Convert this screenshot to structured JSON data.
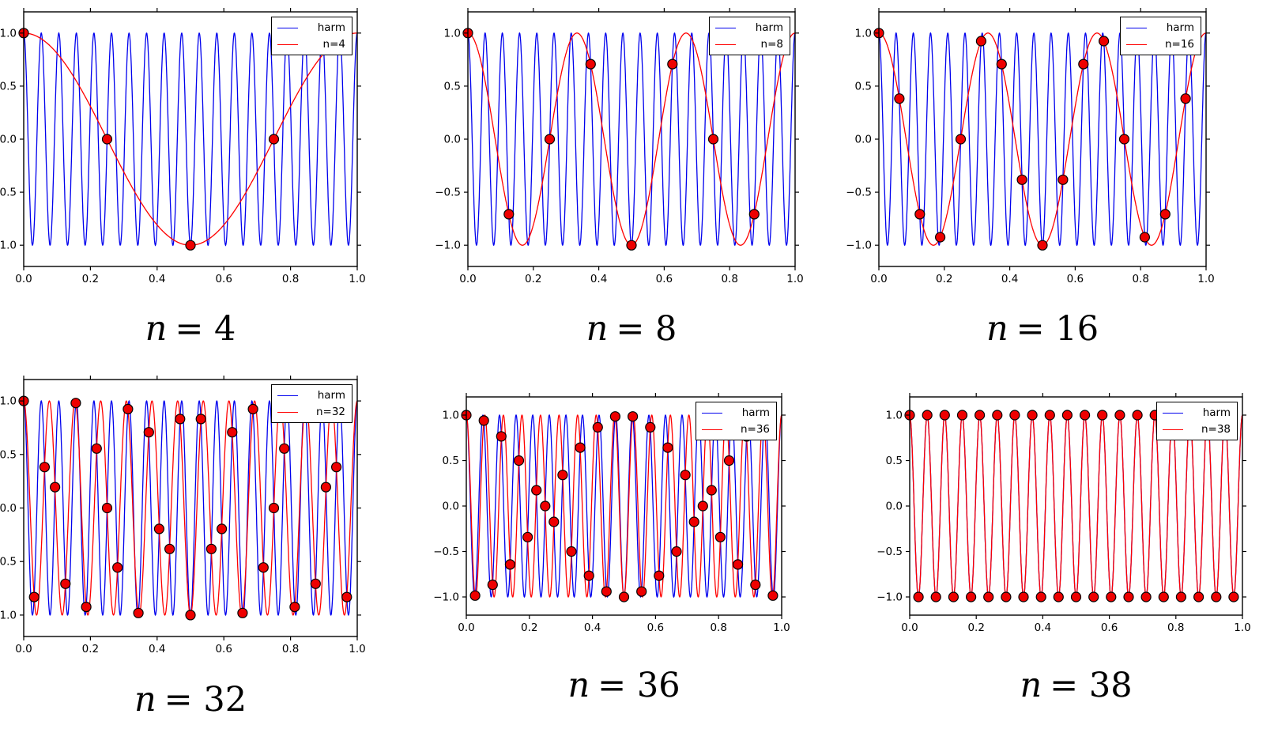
{
  "figure": {
    "background": "#ffffff",
    "description": "Aliasing demo: 19 Hz harmonic sampled at n points per unit interval"
  },
  "colors": {
    "harm": "#0000ee",
    "alias": "#ff0000",
    "dot_fill": "#ee0000",
    "dot_edge": "#000000",
    "frame": "#000000"
  },
  "subplots": [
    {
      "caption_var": "n",
      "caption_rest": "= 4",
      "legend_harm": "harm",
      "legend_alias": "n=4"
    },
    {
      "caption_var": "n",
      "caption_rest": "= 8",
      "legend_harm": "harm",
      "legend_alias": "n=8"
    },
    {
      "caption_var": "n",
      "caption_rest": "= 16",
      "legend_harm": "harm",
      "legend_alias": "n=16"
    },
    {
      "caption_var": "n",
      "caption_rest": "= 32",
      "legend_harm": "harm",
      "legend_alias": "n=32"
    },
    {
      "caption_var": "n",
      "caption_rest": "= 36",
      "legend_harm": "harm",
      "legend_alias": "n=36"
    },
    {
      "caption_var": "n",
      "caption_rest": "= 38",
      "legend_harm": "harm",
      "legend_alias": "n=38"
    }
  ],
  "chart_data": [
    {
      "type": "line",
      "title": "n = 4",
      "x_range": [
        0,
        1
      ],
      "y_range": [
        -1.2,
        1.2
      ],
      "xticks": [
        0.0,
        0.2,
        0.4,
        0.6,
        0.8,
        1.0
      ],
      "xtick_labels": [
        "0.0",
        "0.2",
        "0.4",
        "0.6",
        "0.8",
        "1.0"
      ],
      "yticks": [
        1.0,
        0.5,
        0.0,
        -0.5,
        -1.0
      ],
      "ytick_labels": [
        "1.0",
        "0.5",
        "0.0",
        "−0.5",
        "−1.0"
      ],
      "legend_position": "upper right",
      "grid": false,
      "series": [
        {
          "name": "harm",
          "color": "#0000ee",
          "frequency_hz": 19,
          "formula": "cos(2*pi*19*t)"
        },
        {
          "name": "n=4",
          "color": "#ff0000",
          "frequency_hz": 1,
          "formula": "cos(2*pi*1*t)"
        }
      ],
      "samples": {
        "n": 4,
        "marker": "red circle, black edge",
        "x_rule": "t_k = k/n, k = 0..n-1",
        "x": [
          0,
          0.25,
          0.5,
          0.75
        ],
        "y": [
          1,
          0,
          -1,
          0
        ]
      }
    },
    {
      "type": "line",
      "title": "n = 8",
      "x_range": [
        0,
        1
      ],
      "y_range": [
        -1.2,
        1.2
      ],
      "xticks": [
        0.0,
        0.2,
        0.4,
        0.6,
        0.8,
        1.0
      ],
      "xtick_labels": [
        "0.0",
        "0.2",
        "0.4",
        "0.6",
        "0.8",
        "1.0"
      ],
      "yticks": [
        1.0,
        0.5,
        0.0,
        -0.5,
        -1.0
      ],
      "ytick_labels": [
        "1.0",
        "0.5",
        "0.0",
        "−0.5",
        "−1.0"
      ],
      "legend_position": "upper right",
      "grid": false,
      "series": [
        {
          "name": "harm",
          "color": "#0000ee",
          "frequency_hz": 19,
          "formula": "cos(2*pi*19*t)"
        },
        {
          "name": "n=8",
          "color": "#ff0000",
          "frequency_hz": 3,
          "formula": "cos(2*pi*3*t)"
        }
      ],
      "samples": {
        "n": 8,
        "marker": "red circle, black edge",
        "x_rule": "t_k = k/n, k = 0..n-1",
        "x": [
          0,
          0.125,
          0.25,
          0.375,
          0.5,
          0.625,
          0.75,
          0.875
        ],
        "y": [
          1,
          -0.707,
          0,
          0.707,
          -1,
          0.707,
          0,
          -0.707
        ]
      }
    },
    {
      "type": "line",
      "title": "n = 16",
      "x_range": [
        0,
        1
      ],
      "y_range": [
        -1.2,
        1.2
      ],
      "xticks": [
        0.0,
        0.2,
        0.4,
        0.6,
        0.8,
        1.0
      ],
      "xtick_labels": [
        "0.0",
        "0.2",
        "0.4",
        "0.6",
        "0.8",
        "1.0"
      ],
      "yticks": [
        1.0,
        0.5,
        0.0,
        -0.5,
        -1.0
      ],
      "ytick_labels": [
        "1.0",
        "0.5",
        "0.0",
        "−0.5",
        "−1.0"
      ],
      "legend_position": "upper right",
      "grid": false,
      "series": [
        {
          "name": "harm",
          "color": "#0000ee",
          "frequency_hz": 19,
          "formula": "cos(2*pi*19*t)"
        },
        {
          "name": "n=16",
          "color": "#ff0000",
          "frequency_hz": 3,
          "formula": "cos(2*pi*3*t)"
        }
      ],
      "samples": {
        "n": 16,
        "marker": "red circle, black edge",
        "x_rule": "t_k = k/n, k = 0..n-1",
        "x": [
          0,
          0.0625,
          0.125,
          0.1875,
          0.25,
          0.3125,
          0.375,
          0.4375,
          0.5,
          0.5625,
          0.625,
          0.6875,
          0.75,
          0.8125,
          0.875,
          0.9375
        ],
        "y": [
          1,
          0.383,
          -0.707,
          -0.924,
          0,
          0.924,
          0.707,
          -0.383,
          -1,
          -0.383,
          0.707,
          0.924,
          0,
          -0.924,
          -0.707,
          0.383
        ]
      }
    },
    {
      "type": "line",
      "title": "n = 32",
      "x_range": [
        0,
        1
      ],
      "y_range": [
        -1.2,
        1.2
      ],
      "xticks": [
        0.0,
        0.2,
        0.4,
        0.6,
        0.8,
        1.0
      ],
      "xtick_labels": [
        "0.0",
        "0.2",
        "0.4",
        "0.6",
        "0.8",
        "1.0"
      ],
      "yticks": [
        1.0,
        0.5,
        0.0,
        -0.5,
        -1.0
      ],
      "ytick_labels": [
        "1.0",
        "0.5",
        "0.0",
        "−0.5",
        "−1.0"
      ],
      "legend_position": "upper right",
      "grid": false,
      "series": [
        {
          "name": "harm",
          "color": "#0000ee",
          "frequency_hz": 19,
          "formula": "cos(2*pi*19*t)"
        },
        {
          "name": "n=32",
          "color": "#ff0000",
          "frequency_hz": 13,
          "formula": "cos(2*pi*13*t)"
        }
      ],
      "samples": {
        "n": 32,
        "marker": "red circle, black edge",
        "x_rule": "t_k = k/n, k = 0..n-1",
        "x": [
          0,
          0.03125,
          0.0625,
          0.09375,
          0.125,
          0.15625,
          0.1875,
          0.21875,
          0.25,
          0.28125,
          0.3125,
          0.34375,
          0.375,
          0.40625,
          0.4375,
          0.46875,
          0.5,
          0.53125,
          0.5625,
          0.59375,
          0.625,
          0.65625,
          0.6875,
          0.71875,
          0.75,
          0.78125,
          0.8125,
          0.84375,
          0.875,
          0.90625,
          0.9375,
          0.96875
        ],
        "y": [
          1,
          -0.831,
          0.383,
          0.195,
          -0.707,
          0.981,
          -0.924,
          0.556,
          0,
          -0.556,
          0.924,
          -0.981,
          0.707,
          -0.195,
          -0.383,
          0.831,
          -1,
          0.831,
          -0.383,
          -0.195,
          0.707,
          -0.981,
          0.924,
          -0.556,
          0,
          0.556,
          -0.924,
          0.981,
          -0.707,
          0.195,
          0.383,
          -0.831
        ]
      }
    },
    {
      "type": "line",
      "title": "n = 36",
      "x_range": [
        0,
        1
      ],
      "y_range": [
        -1.2,
        1.2
      ],
      "xticks": [
        0.0,
        0.2,
        0.4,
        0.6,
        0.8,
        1.0
      ],
      "xtick_labels": [
        "0.0",
        "0.2",
        "0.4",
        "0.6",
        "0.8",
        "1.0"
      ],
      "yticks": [
        1.0,
        0.5,
        0.0,
        -0.5,
        -1.0
      ],
      "ytick_labels": [
        "1.0",
        "0.5",
        "0.0",
        "−0.5",
        "−1.0"
      ],
      "legend_position": "upper right",
      "grid": false,
      "series": [
        {
          "name": "harm",
          "color": "#0000ee",
          "frequency_hz": 19,
          "formula": "cos(2*pi*19*t)"
        },
        {
          "name": "n=36",
          "color": "#ff0000",
          "frequency_hz": 17,
          "formula": "cos(2*pi*17*t)"
        }
      ],
      "samples": {
        "n": 36,
        "marker": "red circle, black edge",
        "x_rule": "t_k = k/n, k = 0..n-1",
        "x": [
          0,
          0.0278,
          0.0556,
          0.0833,
          0.1111,
          0.1389,
          0.1667,
          0.1944,
          0.2222,
          0.25,
          0.2778,
          0.3056,
          0.3333,
          0.3611,
          0.3889,
          0.4167,
          0.4444,
          0.4722,
          0.5,
          0.5278,
          0.5556,
          0.5833,
          0.6111,
          0.6389,
          0.6667,
          0.6944,
          0.7222,
          0.75,
          0.7778,
          0.8056,
          0.8333,
          0.8611,
          0.8889,
          0.9167,
          0.9444,
          0.9722
        ],
        "y": [
          1,
          -0.985,
          0.94,
          -0.866,
          0.766,
          -0.643,
          0.5,
          -0.342,
          0.174,
          0,
          -0.174,
          0.342,
          -0.5,
          0.643,
          -0.766,
          0.866,
          -0.94,
          0.985,
          -1,
          0.985,
          -0.94,
          0.866,
          -0.766,
          0.643,
          -0.5,
          0.342,
          -0.174,
          0,
          0.174,
          -0.342,
          0.5,
          -0.643,
          0.766,
          -0.866,
          0.94,
          -0.985
        ]
      }
    },
    {
      "type": "line",
      "title": "n = 38",
      "x_range": [
        0,
        1
      ],
      "y_range": [
        -1.2,
        1.2
      ],
      "xticks": [
        0.0,
        0.2,
        0.4,
        0.6,
        0.8,
        1.0
      ],
      "xtick_labels": [
        "0.0",
        "0.2",
        "0.4",
        "0.6",
        "0.8",
        "1.0"
      ],
      "yticks": [
        1.0,
        0.5,
        0.0,
        -0.5,
        -1.0
      ],
      "ytick_labels": [
        "1.0",
        "0.5",
        "0.0",
        "−0.5",
        "−1.0"
      ],
      "legend_position": "upper right",
      "grid": false,
      "series": [
        {
          "name": "harm",
          "color": "#0000ee",
          "frequency_hz": 19,
          "formula": "cos(2*pi*19*t)"
        },
        {
          "name": "n=38",
          "color": "#ff0000",
          "frequency_hz": 19,
          "formula": "cos(2*pi*19*t)"
        }
      ],
      "samples": {
        "n": 38,
        "marker": "red circle, black edge",
        "x_rule": "t_k = k/n, k = 0..n-1",
        "x": [
          0,
          0.0263,
          0.0526,
          0.0789,
          0.1053,
          0.1316,
          0.1579,
          0.1842,
          0.2105,
          0.2368,
          0.2632,
          0.2895,
          0.3158,
          0.3421,
          0.3684,
          0.3947,
          0.4211,
          0.4474,
          0.4737,
          0.5,
          0.5263,
          0.5526,
          0.5789,
          0.6053,
          0.6316,
          0.6579,
          0.6842,
          0.7105,
          0.7368,
          0.7632,
          0.7895,
          0.8158,
          0.8421,
          0.8684,
          0.8947,
          0.9211,
          0.9474,
          0.9737
        ],
        "y": [
          1,
          -1,
          1,
          -1,
          1,
          -1,
          1,
          -1,
          1,
          -1,
          1,
          -1,
          1,
          -1,
          1,
          -1,
          1,
          -1,
          1,
          -1,
          1,
          -1,
          1,
          -1,
          1,
          -1,
          1,
          -1,
          1,
          -1,
          1,
          -1,
          1,
          -1,
          1,
          -1,
          1,
          -1
        ]
      }
    }
  ]
}
